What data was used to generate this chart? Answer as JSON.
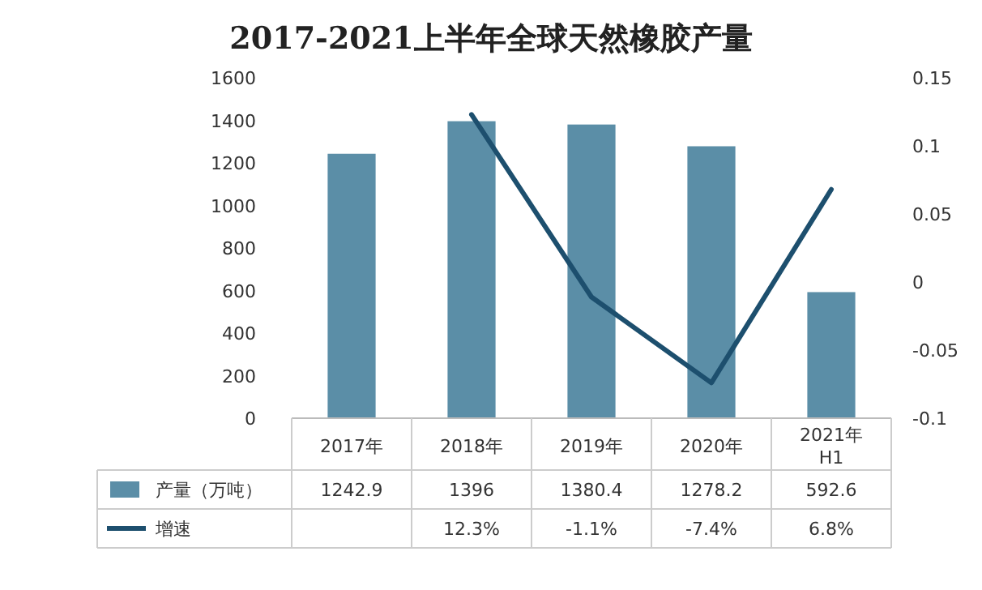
{
  "chart_data": {
    "type": "bar",
    "title": "2017-2021上半年全球天然橡胶产量",
    "categories": [
      "2017年",
      "2018年",
      "2019年",
      "2020年",
      "2021年 H1"
    ],
    "series": [
      {
        "name": "产量（万吨）",
        "color": "#5b8ea7",
        "values": [
          1242.9,
          1396,
          1380.4,
          1278.2,
          592.6
        ]
      },
      {
        "name": "增速",
        "type": "line",
        "axis": "y2",
        "color": "#1d4f6e",
        "values": [
          null,
          0.123,
          -0.011,
          -0.074,
          0.068
        ],
        "value_labels": [
          null,
          "12.3%",
          "-1.1%",
          "-7.4%",
          "6.8%"
        ]
      }
    ],
    "ylim": [
      0,
      1600
    ],
    "yticks": [
      0,
      200,
      400,
      600,
      800,
      1000,
      1200,
      1400,
      1600
    ],
    "y2lim": [
      -0.1,
      0.15
    ],
    "y2ticks": [
      -0.1,
      -0.05,
      0,
      0.05,
      0.1,
      0.15
    ],
    "data_labels": true,
    "legend": "bottom",
    "grid": false
  }
}
